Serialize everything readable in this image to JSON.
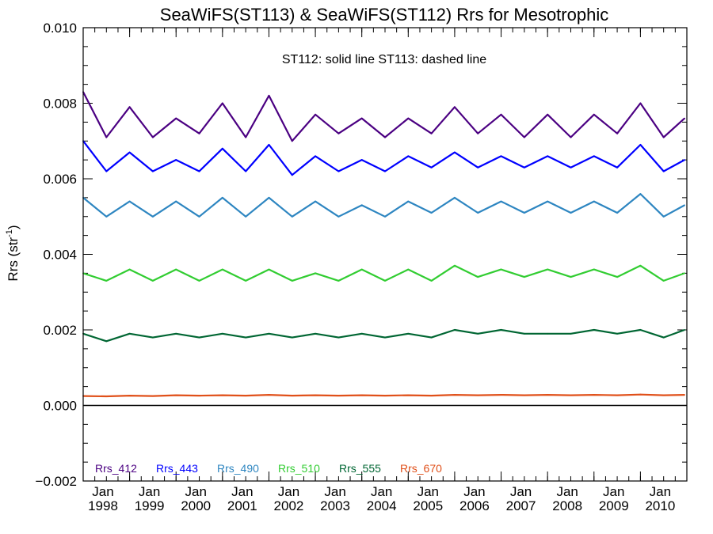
{
  "chart_data": {
    "type": "line",
    "title": "SeaWiFS(ST113) & SeaWiFS(ST112)  Rrs for Mesotrophic",
    "annotation": "ST112: solid line   ST113: dashed line",
    "ylabel_main": "Rrs (str",
    "ylabel_sup": "-1",
    "ylabel_tail": ")",
    "xlabel": "",
    "xlim": [
      1998.0,
      2011.0
    ],
    "ylim": [
      -0.002,
      0.01
    ],
    "yticks": [
      {
        "value": -0.002,
        "label": "−0.002"
      },
      {
        "value": 0.0,
        "label": "0.000"
      },
      {
        "value": 0.002,
        "label": "0.002"
      },
      {
        "value": 0.004,
        "label": "0.004"
      },
      {
        "value": 0.006,
        "label": "0.006"
      },
      {
        "value": 0.008,
        "label": "0.008"
      },
      {
        "value": 0.01,
        "label": "0.010"
      }
    ],
    "xticks": [
      {
        "value": 1998,
        "month": "Jan",
        "year": "1998"
      },
      {
        "value": 1999,
        "month": "Jan",
        "year": "1999"
      },
      {
        "value": 2000,
        "month": "Jan",
        "year": "2000"
      },
      {
        "value": 2001,
        "month": "Jan",
        "year": "2001"
      },
      {
        "value": 2002,
        "month": "Jan",
        "year": "2002"
      },
      {
        "value": 2003,
        "month": "Jan",
        "year": "2003"
      },
      {
        "value": 2004,
        "month": "Jan",
        "year": "2004"
      },
      {
        "value": 2005,
        "month": "Jan",
        "year": "2005"
      },
      {
        "value": 2006,
        "month": "Jan",
        "year": "2006"
      },
      {
        "value": 2007,
        "month": "Jan",
        "year": "2007"
      },
      {
        "value": 2008,
        "month": "Jan",
        "year": "2008"
      },
      {
        "value": 2009,
        "month": "Jan",
        "year": "2009"
      },
      {
        "value": 2010,
        "month": "Jan",
        "year": "2010"
      }
    ],
    "grid": false,
    "zero_line": true,
    "legend_position": "bottom-left",
    "x": [
      1998.0,
      1998.5,
      1999.0,
      1999.5,
      2000.0,
      2000.5,
      2001.0,
      2001.5,
      2002.0,
      2002.5,
      2003.0,
      2003.5,
      2004.0,
      2004.5,
      2005.0,
      2005.5,
      2006.0,
      2006.5,
      2007.0,
      2007.5,
      2008.0,
      2008.5,
      2009.0,
      2009.5,
      2010.0,
      2010.5,
      2010.95
    ],
    "series": [
      {
        "name": "Rrs_412",
        "color": "#4B0082",
        "values": [
          0.0083,
          0.0071,
          0.0079,
          0.0071,
          0.0076,
          0.0072,
          0.008,
          0.0071,
          0.0082,
          0.007,
          0.0077,
          0.0072,
          0.0076,
          0.0071,
          0.0076,
          0.0072,
          0.0079,
          0.0072,
          0.0077,
          0.0071,
          0.0077,
          0.0071,
          0.0077,
          0.0072,
          0.008,
          0.0071,
          0.0076
        ]
      },
      {
        "name": "Rrs_443",
        "color": "#0000FF",
        "values": [
          0.007,
          0.0062,
          0.0067,
          0.0062,
          0.0065,
          0.0062,
          0.0068,
          0.0062,
          0.0069,
          0.0061,
          0.0066,
          0.0062,
          0.0065,
          0.0062,
          0.0066,
          0.0063,
          0.0067,
          0.0063,
          0.0066,
          0.0063,
          0.0066,
          0.0063,
          0.0066,
          0.0063,
          0.0069,
          0.0062,
          0.0065
        ]
      },
      {
        "name": "Rrs_490",
        "color": "#2E86C1",
        "values": [
          0.0055,
          0.005,
          0.0054,
          0.005,
          0.0054,
          0.005,
          0.0055,
          0.005,
          0.0055,
          0.005,
          0.0054,
          0.005,
          0.0053,
          0.005,
          0.0054,
          0.0051,
          0.0055,
          0.0051,
          0.0054,
          0.0051,
          0.0054,
          0.0051,
          0.0054,
          0.0051,
          0.0056,
          0.005,
          0.0053
        ]
      },
      {
        "name": "Rrs_510",
        "color": "#32CD32",
        "values": [
          0.0035,
          0.0033,
          0.0036,
          0.0033,
          0.0036,
          0.0033,
          0.0036,
          0.0033,
          0.0036,
          0.0033,
          0.0035,
          0.0033,
          0.0036,
          0.0033,
          0.0036,
          0.0033,
          0.0037,
          0.0034,
          0.0036,
          0.0034,
          0.0036,
          0.0034,
          0.0036,
          0.0034,
          0.0037,
          0.0033,
          0.0035
        ]
      },
      {
        "name": "Rrs_555",
        "color": "#006633",
        "values": [
          0.0019,
          0.0017,
          0.0019,
          0.0018,
          0.0019,
          0.0018,
          0.0019,
          0.0018,
          0.0019,
          0.0018,
          0.0019,
          0.0018,
          0.0019,
          0.0018,
          0.0019,
          0.0018,
          0.002,
          0.0019,
          0.002,
          0.0019,
          0.0019,
          0.0019,
          0.002,
          0.0019,
          0.002,
          0.0018,
          0.002
        ]
      },
      {
        "name": "Rrs_670",
        "color": "#E0501A",
        "values": [
          0.00025,
          0.00024,
          0.00026,
          0.00025,
          0.00027,
          0.00026,
          0.00027,
          0.00026,
          0.00028,
          0.00026,
          0.00027,
          0.00026,
          0.00027,
          0.00026,
          0.00027,
          0.00026,
          0.00028,
          0.00027,
          0.00028,
          0.00027,
          0.00028,
          0.00027,
          0.00028,
          0.00027,
          0.00029,
          0.00027,
          0.00028
        ]
      }
    ]
  }
}
